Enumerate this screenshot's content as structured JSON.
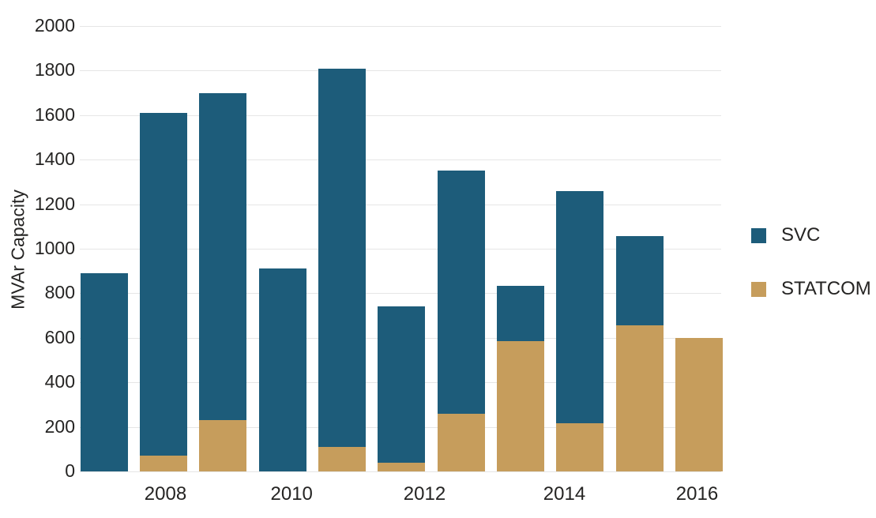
{
  "chart_data": {
    "type": "bar",
    "stacked": true,
    "title": "",
    "xlabel": "",
    "ylabel": "MVAr Capacity",
    "ylim": [
      0,
      2000
    ],
    "y_ticks": [
      0,
      200,
      400,
      600,
      800,
      1000,
      1200,
      1400,
      1600,
      1800,
      2000
    ],
    "x_tick_labels": [
      "2008",
      "2010",
      "2012",
      "2014",
      "2016"
    ],
    "grid": "horizontal",
    "legend_position": "right",
    "series": [
      {
        "name": "SVC",
        "color": "#1d5c7a",
        "values": [
          890,
          1540,
          1470,
          910,
          1700,
          700,
          1090,
          250,
          1045,
          400,
          0
        ]
      },
      {
        "name": "STATCOM",
        "color": "#c69d5c",
        "values": [
          0,
          70,
          230,
          0,
          110,
          40,
          260,
          585,
          215,
          655,
          600
        ]
      }
    ],
    "bar_totals": [
      890,
      1610,
      1700,
      910,
      1810,
      740,
      1350,
      835,
      1260,
      1055,
      600
    ]
  }
}
